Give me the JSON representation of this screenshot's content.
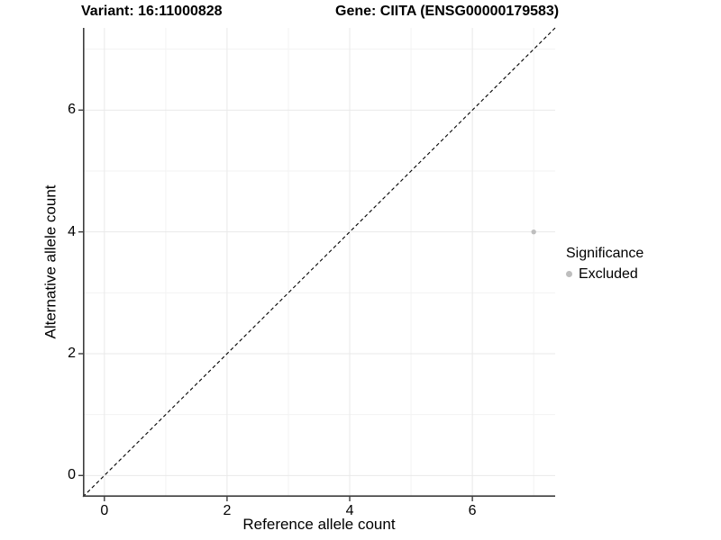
{
  "titles": {
    "left": "Variant: 16:11000828",
    "right": "Gene: CIITA (ENSG00000179583)"
  },
  "chart_data": {
    "type": "scatter",
    "xlabel": "Reference allele count",
    "ylabel": "Alternative allele count",
    "xlim": [
      -0.35,
      7.35
    ],
    "ylim": [
      -0.35,
      7.35
    ],
    "xticks": [
      0,
      2,
      4,
      6
    ],
    "yticks": [
      0,
      2,
      4,
      6
    ],
    "minor_xticks": [
      1,
      3,
      5,
      7
    ],
    "minor_yticks": [
      1,
      3,
      5,
      7
    ],
    "grid": true,
    "reference_line": {
      "type": "identity",
      "slope": 1,
      "intercept": 0,
      "style": "dashed",
      "color": "#000000"
    },
    "series": [
      {
        "name": "Excluded",
        "color": "#bebebe",
        "points": [
          {
            "x": 7,
            "y": 4
          }
        ]
      }
    ],
    "legend": {
      "title": "Significance",
      "position": "right",
      "items": [
        {
          "label": "Excluded",
          "color": "#bebebe"
        }
      ]
    }
  },
  "colors": {
    "background": "#ffffff",
    "grid_major": "#e9e9e9",
    "grid_minor": "#f3f3f3",
    "axis": "#3d3d3d",
    "text": "#000000"
  }
}
